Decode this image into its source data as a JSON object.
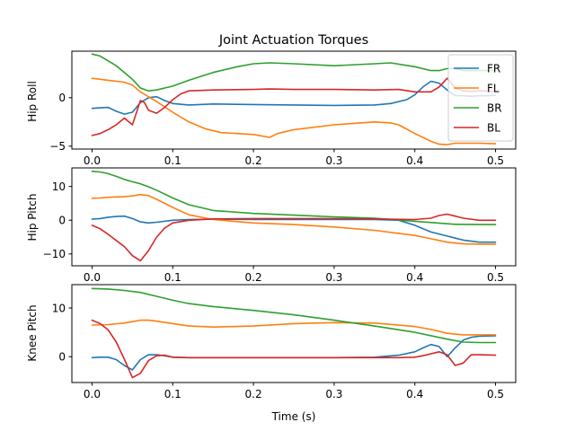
{
  "figure": {
    "title": "Joint Actuation Torques"
  },
  "chart_data": [
    {
      "type": "line",
      "ylabel": "Hip Roll",
      "xlabel": "",
      "xlim": [
        -0.025,
        0.525
      ],
      "ylim": [
        -5.3,
        4.8
      ],
      "xticks": [
        0.0,
        0.1,
        0.2,
        0.3,
        0.4,
        0.5
      ],
      "xtick_labels": [
        "0.0",
        "0.1",
        "0.2",
        "0.3",
        "0.4",
        "0.5"
      ],
      "yticks": [
        -5,
        0
      ],
      "ytick_labels": [
        "−5",
        "0"
      ],
      "legend": {
        "position": "top-right"
      },
      "series": [
        {
          "name": "FR",
          "color": "#1f77b4",
          "x": [
            0.0,
            0.01,
            0.02,
            0.03,
            0.04,
            0.05,
            0.06,
            0.07,
            0.08,
            0.09,
            0.1,
            0.12,
            0.15,
            0.2,
            0.25,
            0.3,
            0.35,
            0.37,
            0.39,
            0.4,
            0.41,
            0.42,
            0.43,
            0.44,
            0.45,
            0.46,
            0.47,
            0.48,
            0.49,
            0.5
          ],
          "y": [
            -1.1,
            -1.05,
            -1.0,
            -1.4,
            -1.7,
            -1.5,
            -0.5,
            0.0,
            0.1,
            -0.3,
            -0.6,
            -0.75,
            -0.65,
            -0.7,
            -0.75,
            -0.8,
            -0.75,
            -0.6,
            -0.2,
            0.3,
            1.1,
            1.7,
            1.5,
            0.8,
            0.2,
            0.2,
            0.15,
            0.2,
            0.2,
            0.25
          ]
        },
        {
          "name": "FL",
          "color": "#ff7f0e",
          "x": [
            0.0,
            0.02,
            0.04,
            0.05,
            0.06,
            0.08,
            0.1,
            0.12,
            0.14,
            0.16,
            0.18,
            0.2,
            0.22,
            0.23,
            0.25,
            0.3,
            0.35,
            0.37,
            0.38,
            0.4,
            0.42,
            0.43,
            0.44,
            0.45,
            0.46,
            0.47,
            0.48,
            0.5
          ],
          "y": [
            2.0,
            1.8,
            1.6,
            1.3,
            0.6,
            -0.4,
            -1.5,
            -2.5,
            -3.2,
            -3.6,
            -3.7,
            -3.8,
            -4.1,
            -3.7,
            -3.3,
            -2.8,
            -2.5,
            -2.6,
            -2.8,
            -3.7,
            -4.5,
            -4.8,
            -4.85,
            -4.7,
            -4.7,
            -4.7,
            -4.7,
            -4.75
          ]
        },
        {
          "name": "BR",
          "color": "#2ca02c",
          "x": [
            0.0,
            0.01,
            0.02,
            0.03,
            0.04,
            0.05,
            0.06,
            0.07,
            0.08,
            0.1,
            0.12,
            0.15,
            0.18,
            0.2,
            0.22,
            0.25,
            0.3,
            0.35,
            0.37,
            0.4,
            0.42,
            0.43,
            0.44,
            0.45,
            0.46,
            0.48,
            0.5
          ],
          "y": [
            4.5,
            4.3,
            3.8,
            3.3,
            2.6,
            1.9,
            1.0,
            0.7,
            0.8,
            1.2,
            1.8,
            2.6,
            3.2,
            3.5,
            3.6,
            3.5,
            3.3,
            3.5,
            3.6,
            3.2,
            2.8,
            2.8,
            3.0,
            3.0,
            2.8,
            2.8,
            2.8
          ]
        },
        {
          "name": "BL",
          "color": "#d62728",
          "x": [
            0.0,
            0.01,
            0.02,
            0.03,
            0.04,
            0.05,
            0.06,
            0.065,
            0.07,
            0.08,
            0.09,
            0.1,
            0.11,
            0.12,
            0.15,
            0.2,
            0.22,
            0.25,
            0.3,
            0.35,
            0.38,
            0.4,
            0.42,
            0.43,
            0.44,
            0.45,
            0.46,
            0.47,
            0.48,
            0.5
          ],
          "y": [
            -3.9,
            -3.7,
            -3.3,
            -2.8,
            -2.1,
            -2.8,
            -0.3,
            -0.5,
            -1.3,
            -1.6,
            -1.0,
            -0.2,
            0.4,
            0.7,
            0.8,
            0.85,
            0.9,
            0.85,
            0.85,
            0.8,
            0.85,
            0.6,
            0.6,
            1.1,
            2.0,
            1.0,
            0.7,
            0.65,
            0.7,
            0.65
          ]
        }
      ]
    },
    {
      "type": "line",
      "ylabel": "Hip Pitch",
      "xlabel": "",
      "xlim": [
        -0.025,
        0.525
      ],
      "ylim": [
        -13.5,
        15.5
      ],
      "xticks": [
        0.0,
        0.1,
        0.2,
        0.3,
        0.4,
        0.5
      ],
      "xtick_labels": [
        "0.0",
        "0.1",
        "0.2",
        "0.3",
        "0.4",
        "0.5"
      ],
      "yticks": [
        -10,
        0,
        10
      ],
      "ytick_labels": [
        "−10",
        "0",
        "10"
      ],
      "series": [
        {
          "name": "FR",
          "color": "#1f77b4",
          "x": [
            0.0,
            0.01,
            0.02,
            0.03,
            0.04,
            0.05,
            0.06,
            0.07,
            0.08,
            0.1,
            0.12,
            0.15,
            0.2,
            0.25,
            0.3,
            0.35,
            0.38,
            0.4,
            0.42,
            0.44,
            0.46,
            0.48,
            0.5
          ],
          "y": [
            0.3,
            0.5,
            0.9,
            1.1,
            1.2,
            0.5,
            -0.5,
            -0.8,
            -0.6,
            0.0,
            0.2,
            0.3,
            0.2,
            0.2,
            0.2,
            0.2,
            0.0,
            -1.5,
            -3.5,
            -4.7,
            -5.9,
            -6.5,
            -6.5
          ]
        },
        {
          "name": "FL",
          "color": "#ff7f0e",
          "x": [
            0.0,
            0.01,
            0.02,
            0.03,
            0.04,
            0.05,
            0.06,
            0.07,
            0.08,
            0.1,
            0.12,
            0.15,
            0.2,
            0.25,
            0.3,
            0.35,
            0.4,
            0.42,
            0.44,
            0.46,
            0.48,
            0.5
          ],
          "y": [
            6.5,
            6.6,
            6.8,
            6.9,
            7.0,
            7.2,
            7.6,
            7.3,
            6.2,
            3.8,
            1.6,
            0.2,
            -0.8,
            -1.3,
            -2.0,
            -3.0,
            -4.5,
            -5.5,
            -6.5,
            -7.0,
            -7.1,
            -7.1
          ]
        },
        {
          "name": "BR",
          "color": "#2ca02c",
          "x": [
            0.0,
            0.01,
            0.02,
            0.03,
            0.04,
            0.05,
            0.06,
            0.07,
            0.08,
            0.1,
            0.12,
            0.15,
            0.2,
            0.25,
            0.3,
            0.35,
            0.4,
            0.45,
            0.48,
            0.5
          ],
          "y": [
            14.5,
            14.3,
            13.8,
            13.0,
            12.1,
            11.4,
            10.8,
            9.9,
            8.9,
            6.6,
            4.6,
            2.9,
            2.0,
            1.5,
            1.0,
            0.6,
            -0.3,
            -1.2,
            -1.3,
            -1.3
          ]
        },
        {
          "name": "BL",
          "color": "#d62728",
          "x": [
            0.0,
            0.01,
            0.02,
            0.03,
            0.04,
            0.05,
            0.06,
            0.07,
            0.08,
            0.09,
            0.1,
            0.12,
            0.15,
            0.2,
            0.25,
            0.3,
            0.35,
            0.4,
            0.42,
            0.43,
            0.44,
            0.45,
            0.46,
            0.48,
            0.5
          ],
          "y": [
            -1.5,
            -2.5,
            -4.2,
            -6.0,
            -7.8,
            -10.5,
            -12.0,
            -9.0,
            -5.0,
            -2.3,
            -0.8,
            0.0,
            0.4,
            0.5,
            0.5,
            0.5,
            0.4,
            0.2,
            0.6,
            1.4,
            1.8,
            1.2,
            0.6,
            0.0,
            0.0
          ]
        }
      ]
    },
    {
      "type": "line",
      "ylabel": "Knee Pitch",
      "xlabel": "Time (s)",
      "xlim": [
        -0.025,
        0.525
      ],
      "ylim": [
        -5.3,
        14.8
      ],
      "xticks": [
        0.0,
        0.1,
        0.2,
        0.3,
        0.4,
        0.5
      ],
      "xtick_labels": [
        "0.0",
        "0.1",
        "0.2",
        "0.3",
        "0.4",
        "0.5"
      ],
      "yticks": [
        0,
        10
      ],
      "ytick_labels": [
        "0",
        "10"
      ],
      "series": [
        {
          "name": "FR",
          "color": "#1f77b4",
          "x": [
            0.0,
            0.01,
            0.02,
            0.03,
            0.04,
            0.05,
            0.06,
            0.07,
            0.08,
            0.09,
            0.1,
            0.12,
            0.15,
            0.2,
            0.25,
            0.3,
            0.35,
            0.38,
            0.4,
            0.41,
            0.42,
            0.43,
            0.44,
            0.45,
            0.46,
            0.47,
            0.48,
            0.5
          ],
          "y": [
            -0.2,
            -0.1,
            -0.1,
            -0.6,
            -1.8,
            -2.7,
            -0.6,
            0.4,
            0.4,
            0.2,
            -0.1,
            -0.2,
            -0.2,
            -0.2,
            -0.2,
            -0.2,
            -0.1,
            0.3,
            1.0,
            1.8,
            2.5,
            2.1,
            0.0,
            1.8,
            3.4,
            4.0,
            4.2,
            4.3
          ]
        },
        {
          "name": "FL",
          "color": "#ff7f0e",
          "x": [
            0.0,
            0.02,
            0.04,
            0.05,
            0.06,
            0.07,
            0.08,
            0.1,
            0.12,
            0.15,
            0.2,
            0.25,
            0.3,
            0.35,
            0.4,
            0.42,
            0.44,
            0.46,
            0.48,
            0.5
          ],
          "y": [
            6.5,
            6.6,
            6.9,
            7.2,
            7.5,
            7.5,
            7.3,
            6.8,
            6.3,
            6.1,
            6.3,
            6.8,
            7.0,
            6.9,
            6.2,
            5.6,
            4.8,
            4.5,
            4.5,
            4.5
          ]
        },
        {
          "name": "BR",
          "color": "#2ca02c",
          "x": [
            0.0,
            0.02,
            0.04,
            0.06,
            0.08,
            0.1,
            0.12,
            0.15,
            0.2,
            0.25,
            0.3,
            0.35,
            0.4,
            0.44,
            0.46,
            0.48,
            0.5
          ],
          "y": [
            14.0,
            13.9,
            13.6,
            13.2,
            12.4,
            11.6,
            10.9,
            10.3,
            9.5,
            8.6,
            7.5,
            6.3,
            5.0,
            3.6,
            3.0,
            2.9,
            2.9
          ]
        },
        {
          "name": "BL",
          "color": "#d62728",
          "x": [
            0.0,
            0.01,
            0.02,
            0.03,
            0.04,
            0.05,
            0.06,
            0.07,
            0.08,
            0.09,
            0.1,
            0.12,
            0.15,
            0.2,
            0.25,
            0.3,
            0.35,
            0.38,
            0.4,
            0.41,
            0.42,
            0.43,
            0.44,
            0.45,
            0.46,
            0.47,
            0.48,
            0.5
          ],
          "y": [
            7.5,
            6.8,
            5.5,
            3.0,
            -0.5,
            -4.3,
            -3.4,
            -0.8,
            0.2,
            0.3,
            -0.1,
            -0.2,
            -0.2,
            -0.2,
            -0.2,
            -0.2,
            -0.2,
            -0.2,
            -0.1,
            0.2,
            0.6,
            1.0,
            0.4,
            -1.8,
            -1.3,
            0.4,
            0.4,
            0.3
          ]
        }
      ]
    }
  ]
}
